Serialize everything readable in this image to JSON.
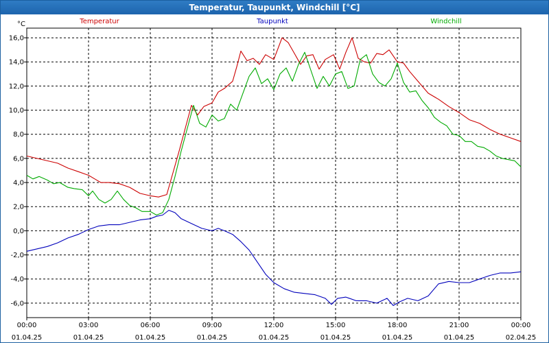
{
  "window": {
    "title": "Temperatur, Taupunkt, Windchill [°C]"
  },
  "chart_data": {
    "type": "line",
    "title": "Temperatur, Taupunkt, Windchill [°C]",
    "ylabel": "°C",
    "ylim": [
      -7.2,
      16.8
    ],
    "y_ticks": [
      "16,0",
      "14,0",
      "12,0",
      "10,0",
      "8,0",
      "6,0",
      "4,0",
      "2,0",
      "0,0",
      "-2,0",
      "-4,0",
      "-6,0"
    ],
    "xlim": [
      0,
      24
    ],
    "x_ticks": [
      {
        "time": "00:00",
        "date": "01.04.25"
      },
      {
        "time": "03:00",
        "date": "01.04.25"
      },
      {
        "time": "06:00",
        "date": "01.04.25"
      },
      {
        "time": "09:00",
        "date": "01.04.25"
      },
      {
        "time": "12:00",
        "date": "01.04.25"
      },
      {
        "time": "15:00",
        "date": "01.04.25"
      },
      {
        "time": "18:00",
        "date": "01.04.25"
      },
      {
        "time": "21:00",
        "date": "01.04.25"
      },
      {
        "time": "00:00",
        "date": "02.04.25"
      }
    ],
    "grid": true,
    "legend": "top",
    "series": [
      {
        "name": "Temperatur",
        "color": "#cc0000",
        "points": [
          [
            0,
            6.2
          ],
          [
            0.5,
            6.0
          ],
          [
            1,
            5.8
          ],
          [
            1.5,
            5.6
          ],
          [
            2,
            5.2
          ],
          [
            2.5,
            4.9
          ],
          [
            3,
            4.6
          ],
          [
            3.3,
            4.3
          ],
          [
            3.6,
            4.0
          ],
          [
            4,
            4.0
          ],
          [
            4.5,
            3.9
          ],
          [
            5,
            3.6
          ],
          [
            5.5,
            3.1
          ],
          [
            6,
            2.9
          ],
          [
            6.4,
            2.8
          ],
          [
            6.8,
            3.0
          ],
          [
            7.1,
            4.8
          ],
          [
            7.4,
            6.6
          ],
          [
            7.7,
            8.5
          ],
          [
            8,
            10.4
          ],
          [
            8.3,
            9.6
          ],
          [
            8.6,
            10.3
          ],
          [
            9,
            10.6
          ],
          [
            9.3,
            11.5
          ],
          [
            9.6,
            11.8
          ],
          [
            10,
            12.4
          ],
          [
            10.2,
            13.6
          ],
          [
            10.4,
            14.9
          ],
          [
            10.7,
            14.1
          ],
          [
            11,
            14.3
          ],
          [
            11.3,
            13.8
          ],
          [
            11.6,
            14.6
          ],
          [
            12,
            14.2
          ],
          [
            12.2,
            15.1
          ],
          [
            12.4,
            16.0
          ],
          [
            12.7,
            15.6
          ],
          [
            13,
            14.7
          ],
          [
            13.3,
            13.8
          ],
          [
            13.6,
            14.5
          ],
          [
            13.9,
            14.6
          ],
          [
            14.2,
            13.4
          ],
          [
            14.5,
            14.2
          ],
          [
            14.9,
            14.6
          ],
          [
            15.2,
            13.4
          ],
          [
            15.5,
            14.8
          ],
          [
            15.8,
            16.0
          ],
          [
            16.1,
            14.3
          ],
          [
            16.4,
            14.0
          ],
          [
            16.7,
            13.9
          ],
          [
            17,
            14.7
          ],
          [
            17.3,
            14.6
          ],
          [
            17.6,
            15.0
          ],
          [
            18,
            14.0
          ],
          [
            18.3,
            13.9
          ],
          [
            18.6,
            13.2
          ],
          [
            19,
            12.4
          ],
          [
            19.5,
            11.4
          ],
          [
            20,
            10.9
          ],
          [
            20.5,
            10.3
          ],
          [
            21,
            9.8
          ],
          [
            21.5,
            9.2
          ],
          [
            22,
            8.9
          ],
          [
            22.5,
            8.4
          ],
          [
            23,
            8.0
          ],
          [
            23.5,
            7.7
          ],
          [
            24,
            7.4
          ]
        ]
      },
      {
        "name": "Taupunkt",
        "color": "#0000bb",
        "points": [
          [
            0,
            -1.7
          ],
          [
            0.5,
            -1.5
          ],
          [
            1,
            -1.3
          ],
          [
            1.5,
            -1.0
          ],
          [
            2,
            -0.6
          ],
          [
            2.5,
            -0.3
          ],
          [
            3,
            0.1
          ],
          [
            3.5,
            0.4
          ],
          [
            4,
            0.5
          ],
          [
            4.5,
            0.5
          ],
          [
            5,
            0.7
          ],
          [
            5.5,
            0.9
          ],
          [
            6,
            1.0
          ],
          [
            6.3,
            1.2
          ],
          [
            6.6,
            1.3
          ],
          [
            6.9,
            1.7
          ],
          [
            7.2,
            1.5
          ],
          [
            7.5,
            1.0
          ],
          [
            8,
            0.6
          ],
          [
            8.5,
            0.2
          ],
          [
            9,
            0.0
          ],
          [
            9.3,
            0.2
          ],
          [
            9.6,
            0.0
          ],
          [
            10,
            -0.3
          ],
          [
            10.4,
            -0.9
          ],
          [
            10.8,
            -1.6
          ],
          [
            11.2,
            -2.6
          ],
          [
            11.6,
            -3.6
          ],
          [
            12,
            -4.3
          ],
          [
            12.5,
            -4.8
          ],
          [
            13,
            -5.1
          ],
          [
            13.5,
            -5.2
          ],
          [
            14,
            -5.3
          ],
          [
            14.5,
            -5.6
          ],
          [
            14.8,
            -6.1
          ],
          [
            15.1,
            -5.6
          ],
          [
            15.5,
            -5.5
          ],
          [
            16,
            -5.8
          ],
          [
            16.5,
            -5.8
          ],
          [
            17,
            -6.0
          ],
          [
            17.5,
            -5.6
          ],
          [
            17.8,
            -6.2
          ],
          [
            18.1,
            -5.9
          ],
          [
            18.5,
            -5.6
          ],
          [
            19,
            -5.8
          ],
          [
            19.5,
            -5.4
          ],
          [
            20,
            -4.4
          ],
          [
            20.5,
            -4.2
          ],
          [
            21,
            -4.3
          ],
          [
            21.5,
            -4.3
          ],
          [
            22,
            -4.0
          ],
          [
            22.5,
            -3.7
          ],
          [
            23,
            -3.5
          ],
          [
            23.5,
            -3.5
          ],
          [
            24,
            -3.4
          ]
        ]
      },
      {
        "name": "Windchill",
        "color": "#00aa00",
        "points": [
          [
            0,
            4.6
          ],
          [
            0.3,
            4.3
          ],
          [
            0.6,
            4.5
          ],
          [
            1,
            4.2
          ],
          [
            1.3,
            3.9
          ],
          [
            1.6,
            4.0
          ],
          [
            2,
            3.6
          ],
          [
            2.3,
            3.5
          ],
          [
            2.7,
            3.4
          ],
          [
            3,
            2.9
          ],
          [
            3.2,
            3.3
          ],
          [
            3.5,
            2.6
          ],
          [
            3.8,
            2.3
          ],
          [
            4.1,
            2.6
          ],
          [
            4.4,
            3.3
          ],
          [
            4.7,
            2.6
          ],
          [
            5,
            2.1
          ],
          [
            5.3,
            1.9
          ],
          [
            5.6,
            1.6
          ],
          [
            6,
            1.6
          ],
          [
            6.3,
            1.3
          ],
          [
            6.6,
            1.5
          ],
          [
            6.9,
            2.6
          ],
          [
            7.2,
            4.5
          ],
          [
            7.5,
            6.6
          ],
          [
            7.8,
            8.5
          ],
          [
            8.1,
            10.4
          ],
          [
            8.4,
            8.9
          ],
          [
            8.7,
            8.6
          ],
          [
            9,
            9.6
          ],
          [
            9.3,
            9.1
          ],
          [
            9.6,
            9.3
          ],
          [
            9.9,
            10.5
          ],
          [
            10.2,
            10.0
          ],
          [
            10.5,
            11.4
          ],
          [
            10.8,
            12.8
          ],
          [
            11.1,
            13.5
          ],
          [
            11.4,
            12.2
          ],
          [
            11.7,
            12.6
          ],
          [
            12,
            11.7
          ],
          [
            12.3,
            13.0
          ],
          [
            12.6,
            13.5
          ],
          [
            12.9,
            12.4
          ],
          [
            13.2,
            13.8
          ],
          [
            13.5,
            14.8
          ],
          [
            13.8,
            13.3
          ],
          [
            14.1,
            11.8
          ],
          [
            14.4,
            12.8
          ],
          [
            14.7,
            12.0
          ],
          [
            15,
            13.0
          ],
          [
            15.3,
            13.2
          ],
          [
            15.6,
            11.8
          ],
          [
            15.9,
            12.0
          ],
          [
            16.2,
            14.2
          ],
          [
            16.5,
            14.6
          ],
          [
            16.8,
            13.0
          ],
          [
            17.1,
            12.3
          ],
          [
            17.4,
            12.0
          ],
          [
            17.7,
            12.6
          ],
          [
            18,
            13.9
          ],
          [
            18.3,
            12.3
          ],
          [
            18.6,
            11.5
          ],
          [
            18.9,
            11.6
          ],
          [
            19.2,
            10.8
          ],
          [
            19.5,
            10.2
          ],
          [
            19.8,
            9.4
          ],
          [
            20.1,
            9.0
          ],
          [
            20.4,
            8.7
          ],
          [
            20.7,
            8.0
          ],
          [
            21,
            7.9
          ],
          [
            21.3,
            7.4
          ],
          [
            21.6,
            7.4
          ],
          [
            21.9,
            7.0
          ],
          [
            22.2,
            6.9
          ],
          [
            22.5,
            6.6
          ],
          [
            22.8,
            6.2
          ],
          [
            23.1,
            6.0
          ],
          [
            23.4,
            5.9
          ],
          [
            23.7,
            5.8
          ],
          [
            24,
            5.3
          ]
        ]
      }
    ]
  }
}
